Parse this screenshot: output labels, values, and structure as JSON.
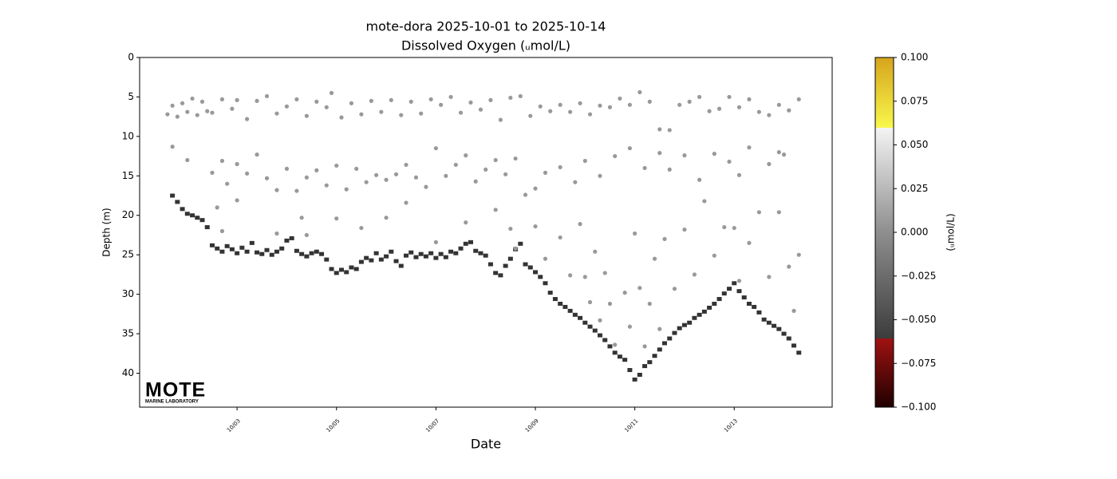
{
  "chart_data": {
    "type": "scatter",
    "title": "mote-dora 2025-10-01 to 2025-10-14",
    "subtitle": "Dissolved Oxygen (ᵤmol/L)",
    "x_label": "Date",
    "y_label": "Depth (m)",
    "xlim": [
      1.04,
      14.97
    ],
    "ylim": [
      44.3,
      0
    ],
    "xticks": [
      {
        "value": 3,
        "label": "10/03"
      },
      {
        "value": 5,
        "label": "10/05"
      },
      {
        "value": 7,
        "label": "10/07"
      },
      {
        "value": 9,
        "label": "10/09"
      },
      {
        "value": 11,
        "label": "10/11"
      },
      {
        "value": 13,
        "label": "10/13"
      }
    ],
    "yticks": [
      0,
      5,
      10,
      15,
      20,
      25,
      30,
      35,
      40
    ],
    "logo": {
      "text": "MOTE",
      "subtitle": "MARINE LABORATORY",
      "color": "#1b3f8f"
    },
    "series": [
      {
        "color": "#000000",
        "marker": "tick",
        "x": [
          1.7,
          1.8,
          1.9,
          2.0,
          2.1,
          2.2,
          2.3,
          2.4,
          2.5,
          2.6,
          2.7,
          2.8,
          2.9,
          3.0,
          3.1,
          3.2,
          3.3,
          3.4,
          3.5,
          3.6,
          3.7,
          3.8,
          3.9,
          4.0,
          4.1,
          4.2,
          4.3,
          4.4,
          4.5,
          4.6,
          4.7,
          4.8,
          4.9,
          5.0,
          5.1,
          5.2,
          5.3,
          5.4,
          5.5,
          5.6,
          5.7,
          5.8,
          5.9,
          6.0,
          6.1,
          6.2,
          6.3,
          6.4,
          6.5,
          6.6,
          6.7,
          6.8,
          6.9,
          7.0,
          7.1,
          7.2,
          7.3,
          7.4,
          7.5,
          7.6,
          7.7,
          7.8,
          7.9,
          8.0,
          8.1,
          8.2,
          8.3,
          8.4,
          8.5,
          8.6,
          8.7,
          8.8,
          8.9,
          9.0,
          9.1,
          9.2,
          9.3,
          9.4,
          9.5,
          9.6,
          9.7,
          9.8,
          9.9,
          10.0,
          10.1,
          10.2,
          10.3,
          10.4,
          10.5,
          10.6,
          10.7,
          10.8,
          10.9,
          11.0,
          11.1,
          11.2,
          11.3,
          11.4,
          11.5,
          11.6,
          11.7,
          11.8,
          11.9,
          12.0,
          12.1,
          12.2,
          12.3,
          12.4,
          12.5,
          12.6,
          12.7,
          12.8,
          12.9,
          13.0,
          13.1,
          13.2,
          13.3,
          13.4,
          13.5,
          13.6,
          13.7,
          13.8,
          13.9,
          14.0,
          14.1,
          14.2,
          14.3
        ],
        "values": [
          17.5,
          18.3,
          19.2,
          19.8,
          20.0,
          20.3,
          20.6,
          21.5,
          23.8,
          24.2,
          24.6,
          23.9,
          24.3,
          24.8,
          24.1,
          24.6,
          23.5,
          24.7,
          24.9,
          24.4,
          25.0,
          24.6,
          24.2,
          23.2,
          22.9,
          24.5,
          24.9,
          25.2,
          24.8,
          24.6,
          24.9,
          25.6,
          26.8,
          27.3,
          26.9,
          27.2,
          26.6,
          26.8,
          25.9,
          25.4,
          25.7,
          24.8,
          25.6,
          25.2,
          24.6,
          25.8,
          26.4,
          25.1,
          24.7,
          25.3,
          24.9,
          25.2,
          24.8,
          25.4,
          24.9,
          25.3,
          24.6,
          24.8,
          24.2,
          23.6,
          23.4,
          24.5,
          24.8,
          25.1,
          26.2,
          27.3,
          27.6,
          26.4,
          25.5,
          24.3,
          23.6,
          26.2,
          26.6,
          27.2,
          27.8,
          28.6,
          29.8,
          30.6,
          31.2,
          31.6,
          32.1,
          32.6,
          33.0,
          33.6,
          34.1,
          34.6,
          35.2,
          35.8,
          36.6,
          37.4,
          37.9,
          38.3,
          39.6,
          40.8,
          40.2,
          39.1,
          38.6,
          37.8,
          37.0,
          36.2,
          35.6,
          34.9,
          34.3,
          33.9,
          33.6,
          33.0,
          32.6,
          32.2,
          31.7,
          31.2,
          30.6,
          29.9,
          29.3,
          28.6,
          29.6,
          30.4,
          31.2,
          31.6,
          32.3,
          33.2,
          33.6,
          34.0,
          34.4,
          35.0,
          35.6,
          36.5,
          37.4
        ]
      },
      {
        "color": "#999999",
        "marker": "dot",
        "x": [
          1.6,
          1.7,
          1.8,
          1.9,
          2.0,
          2.1,
          2.2,
          2.3,
          2.4,
          2.5,
          2.7,
          2.9,
          3.0,
          3.2,
          3.4,
          3.6,
          3.8,
          4.0,
          4.2,
          4.4,
          4.6,
          4.8,
          4.9,
          5.1,
          5.3,
          5.5,
          5.7,
          5.9,
          6.1,
          6.3,
          6.5,
          6.7,
          6.9,
          7.1,
          7.3,
          7.5,
          7.7,
          7.9,
          8.1,
          8.3,
          8.5,
          8.7,
          8.9,
          9.1,
          9.3,
          9.5,
          9.7,
          9.9,
          10.1,
          10.3,
          10.5,
          10.7,
          10.9,
          11.1,
          11.3,
          11.5,
          11.7,
          11.9,
          12.1,
          12.3,
          12.5,
          12.7,
          12.9,
          13.1,
          13.3,
          13.5,
          13.7,
          13.9,
          14.1,
          14.3,
          1.7,
          2.0,
          2.5,
          2.7,
          2.8,
          3.0,
          3.2,
          3.4,
          3.6,
          3.8,
          4.0,
          4.2,
          4.4,
          4.6,
          4.8,
          5.0,
          5.2,
          5.4,
          5.6,
          5.8,
          6.0,
          6.2,
          6.4,
          6.6,
          6.8,
          7.0,
          7.2,
          7.4,
          7.6,
          7.8,
          8.0,
          8.2,
          8.4,
          8.6,
          8.8,
          9.0,
          9.2,
          9.5,
          9.8,
          10.0,
          10.3,
          10.6,
          10.9,
          11.2,
          11.5,
          11.7,
          12.0,
          12.3,
          12.6,
          12.9,
          13.1,
          13.3,
          13.7,
          13.9,
          14.0,
          2.6,
          2.7,
          3.0,
          3.8,
          4.3,
          4.4,
          5.0,
          5.5,
          6.0,
          6.4,
          7.0,
          7.6,
          8.2,
          8.5,
          8.6,
          9.0,
          9.2,
          9.5,
          9.7,
          9.9,
          10.0,
          10.1,
          10.2,
          10.3,
          10.4,
          10.5,
          10.6,
          10.8,
          10.9,
          11.0,
          11.1,
          11.2,
          11.3,
          11.4,
          11.5,
          11.6,
          11.8,
          12.0,
          12.2,
          12.4,
          12.6,
          12.8,
          13.0,
          13.1,
          13.3,
          13.5,
          13.7,
          13.9,
          14.1,
          14.2,
          14.3
        ],
        "values": [
          7.2,
          6.1,
          7.5,
          5.8,
          6.9,
          5.2,
          7.3,
          5.6,
          6.8,
          7.0,
          5.3,
          6.5,
          5.4,
          7.8,
          5.5,
          4.9,
          7.1,
          6.2,
          5.3,
          7.4,
          5.6,
          6.3,
          4.5,
          7.6,
          5.8,
          7.2,
          5.5,
          6.9,
          5.4,
          7.3,
          5.6,
          7.1,
          5.3,
          6.0,
          5.0,
          7.0,
          5.7,
          6.6,
          5.4,
          7.9,
          5.1,
          4.9,
          7.4,
          6.2,
          6.8,
          6.0,
          6.9,
          5.8,
          7.2,
          6.1,
          6.3,
          5.2,
          6.0,
          4.4,
          5.6,
          9.1,
          9.2,
          6.0,
          5.6,
          5.0,
          6.8,
          6.5,
          5.0,
          6.3,
          5.3,
          6.9,
          7.3,
          6.0,
          6.7,
          5.3,
          11.3,
          13.0,
          14.6,
          13.1,
          16.0,
          13.5,
          14.7,
          12.3,
          15.3,
          16.8,
          14.1,
          16.9,
          15.2,
          14.3,
          16.2,
          13.7,
          16.7,
          14.1,
          15.8,
          14.9,
          15.5,
          14.8,
          13.6,
          15.2,
          16.4,
          11.5,
          15.0,
          13.6,
          12.4,
          15.7,
          14.2,
          13.0,
          14.8,
          12.8,
          17.4,
          16.6,
          14.6,
          13.9,
          15.8,
          13.1,
          15.0,
          12.5,
          11.5,
          14.0,
          12.1,
          14.2,
          12.4,
          15.5,
          12.2,
          13.2,
          14.9,
          11.4,
          13.5,
          12.0,
          12.3,
          19.0,
          22.0,
          18.1,
          22.3,
          20.3,
          22.5,
          20.4,
          21.6,
          20.3,
          18.4,
          23.4,
          20.9,
          19.3,
          21.7,
          24.2,
          21.4,
          25.5,
          22.8,
          27.6,
          21.1,
          27.8,
          31.0,
          24.6,
          33.3,
          27.3,
          31.2,
          36.4,
          29.8,
          34.1,
          22.3,
          29.2,
          36.6,
          31.2,
          25.5,
          34.4,
          23.0,
          29.3,
          21.8,
          27.5,
          18.2,
          25.1,
          21.5,
          21.6,
          28.3,
          23.5,
          19.6,
          27.8,
          19.6,
          26.5,
          32.1,
          25.0
        ]
      }
    ],
    "colorbar": {
      "label": "(ᵤmol/L)",
      "lim": [
        -0.1,
        0.1
      ],
      "ticks": [
        {
          "value": -0.1,
          "label": "−0.100"
        },
        {
          "value": -0.075,
          "label": "−0.075"
        },
        {
          "value": -0.05,
          "label": "−0.050"
        },
        {
          "value": -0.025,
          "label": "−0.025"
        },
        {
          "value": 0,
          "label": "0.000"
        },
        {
          "value": 0.025,
          "label": "0.025"
        },
        {
          "value": 0.05,
          "label": "0.050"
        },
        {
          "value": 0.075,
          "label": "0.075"
        },
        {
          "value": 0.1,
          "label": "0.100"
        }
      ],
      "colormap": [
        {
          "value": -0.1,
          "color": "#200000"
        },
        {
          "value": -0.0607,
          "color": "#a01212"
        },
        {
          "value": -0.0607,
          "color": "#3c3c3c"
        },
        {
          "value": 0,
          "color": "#8e8e8e"
        },
        {
          "value": 0.0598,
          "color": "#f4f4f4"
        },
        {
          "value": 0.0598,
          "color": "#f8f84c"
        },
        {
          "value": 0.1,
          "color": "#d6a41c"
        }
      ]
    }
  }
}
